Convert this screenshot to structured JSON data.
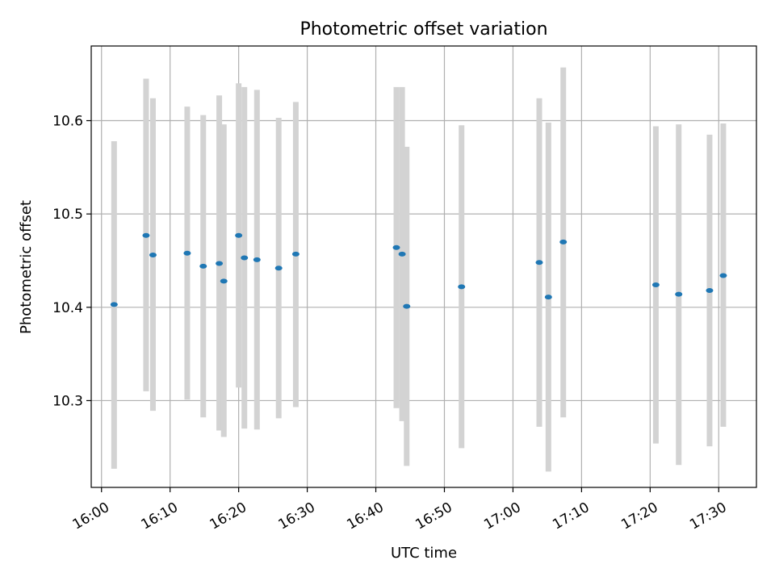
{
  "chart_data": {
    "type": "scatter",
    "title": "Photometric offset variation",
    "xlabel": "UTC time",
    "ylabel": "Photometric offset",
    "grid": true,
    "x_ticks": [
      "16:00",
      "16:10",
      "16:20",
      "16:30",
      "16:40",
      "16:50",
      "17:00",
      "17:10",
      "17:20",
      "17:30"
    ],
    "y_ticks": [
      "10.3",
      "10.4",
      "10.5",
      "10.6"
    ],
    "xlim": [
      "15:58:30",
      "17:35:30"
    ],
    "ylim": [
      10.207,
      10.68
    ],
    "colors": {
      "marker": "#1f77b4",
      "errorbar": "#d3d3d3"
    },
    "points": [
      {
        "t": "16:01:50",
        "y": 10.403,
        "lo": 10.227,
        "hi": 10.578
      },
      {
        "t": "16:06:30",
        "y": 10.477,
        "lo": 10.31,
        "hi": 10.645
      },
      {
        "t": "16:07:30",
        "y": 10.456,
        "lo": 10.289,
        "hi": 10.624
      },
      {
        "t": "16:12:30",
        "y": 10.458,
        "lo": 10.301,
        "hi": 10.615
      },
      {
        "t": "16:14:50",
        "y": 10.444,
        "lo": 10.282,
        "hi": 10.606
      },
      {
        "t": "16:17:10",
        "y": 10.447,
        "lo": 10.268,
        "hi": 10.627
      },
      {
        "t": "16:17:50",
        "y": 10.428,
        "lo": 10.261,
        "hi": 10.596
      },
      {
        "t": "16:20:00",
        "y": 10.477,
        "lo": 10.314,
        "hi": 10.64
      },
      {
        "t": "16:20:50",
        "y": 10.453,
        "lo": 10.27,
        "hi": 10.636
      },
      {
        "t": "16:22:40",
        "y": 10.451,
        "lo": 10.269,
        "hi": 10.633
      },
      {
        "t": "16:25:50",
        "y": 10.442,
        "lo": 10.281,
        "hi": 10.603
      },
      {
        "t": "16:28:20",
        "y": 10.457,
        "lo": 10.293,
        "hi": 10.62
      },
      {
        "t": "16:43:00",
        "y": 10.464,
        "lo": 10.292,
        "hi": 10.636
      },
      {
        "t": "16:43:50",
        "y": 10.457,
        "lo": 10.278,
        "hi": 10.636
      },
      {
        "t": "16:44:30",
        "y": 10.401,
        "lo": 10.23,
        "hi": 10.572
      },
      {
        "t": "16:52:30",
        "y": 10.422,
        "lo": 10.249,
        "hi": 10.595
      },
      {
        "t": "17:03:50",
        "y": 10.448,
        "lo": 10.272,
        "hi": 10.624
      },
      {
        "t": "17:05:10",
        "y": 10.411,
        "lo": 10.224,
        "hi": 10.598
      },
      {
        "t": "17:07:20",
        "y": 10.47,
        "lo": 10.282,
        "hi": 10.657
      },
      {
        "t": "17:20:50",
        "y": 10.424,
        "lo": 10.254,
        "hi": 10.594
      },
      {
        "t": "17:24:10",
        "y": 10.414,
        "lo": 10.231,
        "hi": 10.596
      },
      {
        "t": "17:28:40",
        "y": 10.418,
        "lo": 10.251,
        "hi": 10.585
      },
      {
        "t": "17:30:40",
        "y": 10.434,
        "lo": 10.272,
        "hi": 10.597
      }
    ]
  }
}
